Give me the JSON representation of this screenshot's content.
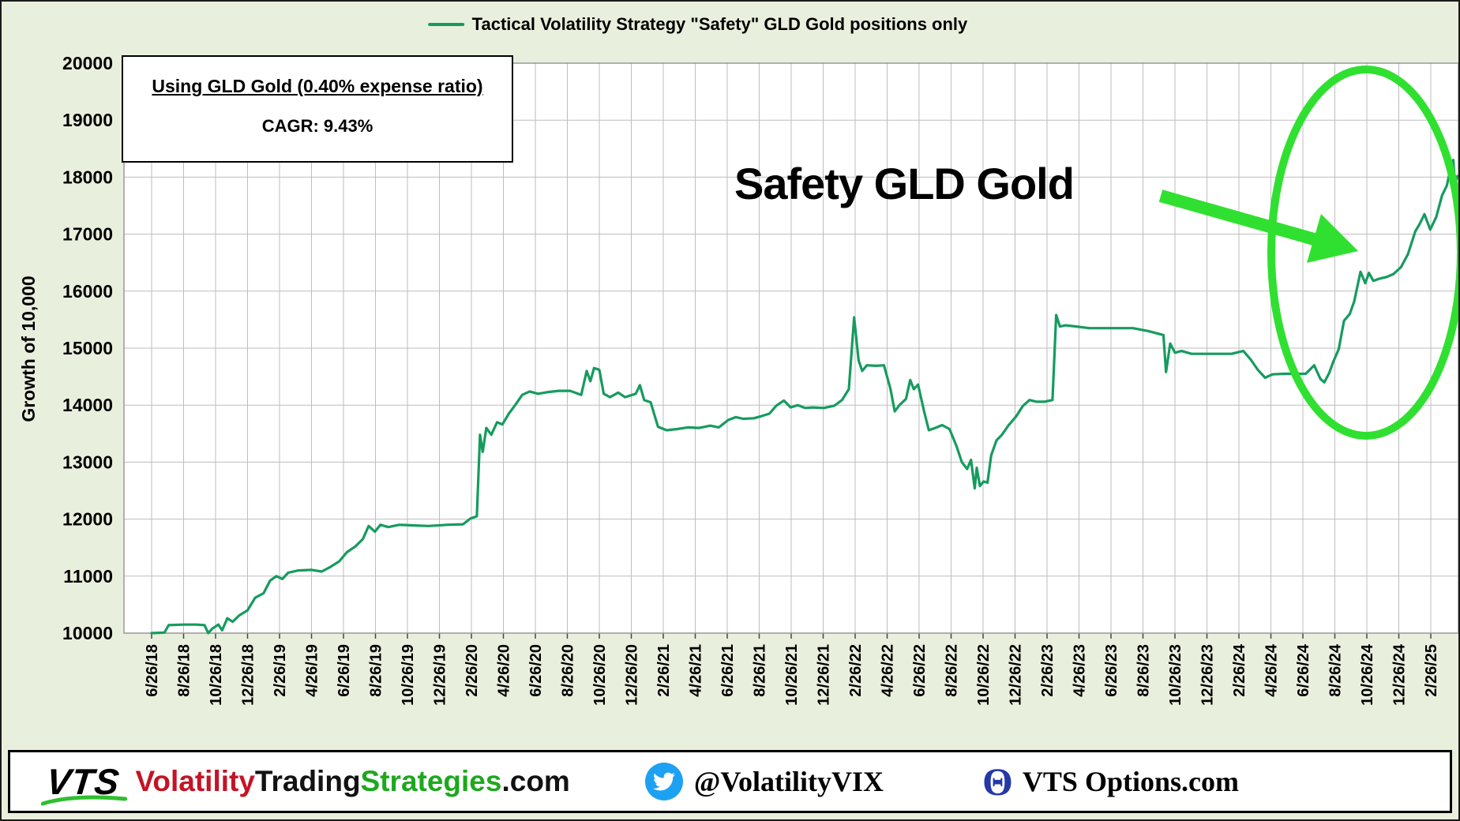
{
  "page": {
    "background_color": "#e9efdd"
  },
  "legend": {
    "label": "Tactical Volatility Strategy \"Safety\" GLD Gold positions only",
    "line_color": "#169b5f"
  },
  "info_box": {
    "title": "Using GLD Gold  (0.40% expense ratio)",
    "cagr_line": "CAGR:  9.43%"
  },
  "annotation": {
    "text": "Safety GLD Gold",
    "highlight_color": "#30e030"
  },
  "chart_data": {
    "type": "line",
    "title": "Tactical Volatility Strategy \"Safety\" GLD Gold positions only",
    "xlabel": "",
    "ylabel": "Growth of 10,000",
    "ylim": [
      10000,
      20000
    ],
    "y_tick_step": 1000,
    "grid": true,
    "legend_position": "top-center",
    "x_tick_labels": [
      "6/26/18",
      "8/26/18",
      "10/26/18",
      "12/26/18",
      "2/26/19",
      "4/26/19",
      "6/26/19",
      "8/26/19",
      "10/26/19",
      "12/26/19",
      "2/26/20",
      "4/26/20",
      "6/26/20",
      "8/26/20",
      "10/26/20",
      "12/26/20",
      "2/26/21",
      "4/26/21",
      "6/26/21",
      "8/26/21",
      "10/26/21",
      "12/26/21",
      "2/26/22",
      "4/26/22",
      "6/26/22",
      "8/26/22",
      "10/26/22",
      "12/26/22",
      "2/26/23",
      "4/26/23",
      "6/26/23",
      "8/26/23",
      "10/26/23",
      "12/26/23",
      "2/26/24",
      "4/26/24",
      "6/26/24",
      "8/26/24",
      "10/26/24",
      "12/26/24",
      "2/26/25"
    ],
    "series": [
      {
        "name": "Tactical Volatility Strategy \"Safety\" GLD Gold positions only",
        "color": "#169b5f",
        "points": [
          [
            "2018-06-26",
            10000
          ],
          [
            "2018-07-20",
            10010
          ],
          [
            "2018-07-28",
            10140
          ],
          [
            "2018-08-26",
            10150
          ],
          [
            "2018-09-20",
            10150
          ],
          [
            "2018-10-05",
            10140
          ],
          [
            "2018-10-12",
            10000
          ],
          [
            "2018-10-20",
            10080
          ],
          [
            "2018-11-01",
            10150
          ],
          [
            "2018-11-08",
            10050
          ],
          [
            "2018-11-18",
            10260
          ],
          [
            "2018-11-28",
            10200
          ],
          [
            "2018-12-10",
            10310
          ],
          [
            "2018-12-26",
            10400
          ],
          [
            "2019-01-10",
            10620
          ],
          [
            "2019-01-26",
            10700
          ],
          [
            "2019-02-08",
            10920
          ],
          [
            "2019-02-20",
            11000
          ],
          [
            "2019-03-01",
            10950
          ],
          [
            "2019-03-12",
            11060
          ],
          [
            "2019-04-01",
            11100
          ],
          [
            "2019-04-26",
            11110
          ],
          [
            "2019-05-15",
            11080
          ],
          [
            "2019-06-01",
            11160
          ],
          [
            "2019-06-18",
            11260
          ],
          [
            "2019-07-02",
            11420
          ],
          [
            "2019-07-18",
            11520
          ],
          [
            "2019-08-02",
            11650
          ],
          [
            "2019-08-13",
            11880
          ],
          [
            "2019-08-25",
            11780
          ],
          [
            "2019-09-05",
            11900
          ],
          [
            "2019-09-20",
            11860
          ],
          [
            "2019-10-10",
            11900
          ],
          [
            "2019-11-05",
            11890
          ],
          [
            "2019-12-05",
            11880
          ],
          [
            "2020-01-10",
            11900
          ],
          [
            "2020-02-10",
            11910
          ],
          [
            "2020-02-24",
            12010
          ],
          [
            "2020-03-06",
            12050
          ],
          [
            "2020-03-12",
            13480
          ],
          [
            "2020-03-17",
            13180
          ],
          [
            "2020-03-24",
            13600
          ],
          [
            "2020-04-03",
            13480
          ],
          [
            "2020-04-14",
            13700
          ],
          [
            "2020-04-24",
            13660
          ],
          [
            "2020-05-06",
            13850
          ],
          [
            "2020-05-18",
            14000
          ],
          [
            "2020-06-01",
            14180
          ],
          [
            "2020-06-15",
            14240
          ],
          [
            "2020-07-01",
            14200
          ],
          [
            "2020-07-20",
            14230
          ],
          [
            "2020-08-10",
            14250
          ],
          [
            "2020-09-01",
            14250
          ],
          [
            "2020-09-22",
            14180
          ],
          [
            "2020-10-02",
            14600
          ],
          [
            "2020-10-09",
            14420
          ],
          [
            "2020-10-16",
            14650
          ],
          [
            "2020-10-26",
            14620
          ],
          [
            "2020-11-04",
            14200
          ],
          [
            "2020-11-16",
            14140
          ],
          [
            "2020-12-01",
            14220
          ],
          [
            "2020-12-14",
            14140
          ],
          [
            "2021-01-04",
            14200
          ],
          [
            "2021-01-12",
            14350
          ],
          [
            "2021-01-20",
            14090
          ],
          [
            "2021-02-02",
            14050
          ],
          [
            "2021-02-16",
            13620
          ],
          [
            "2021-03-02",
            13560
          ],
          [
            "2021-03-22",
            13580
          ],
          [
            "2021-04-12",
            13610
          ],
          [
            "2021-05-03",
            13600
          ],
          [
            "2021-05-24",
            13640
          ],
          [
            "2021-06-10",
            13610
          ],
          [
            "2021-06-28",
            13740
          ],
          [
            "2021-07-12",
            13790
          ],
          [
            "2021-07-26",
            13760
          ],
          [
            "2021-08-16",
            13770
          ],
          [
            "2021-09-01",
            13810
          ],
          [
            "2021-09-15",
            13850
          ],
          [
            "2021-09-28",
            13990
          ],
          [
            "2021-10-12",
            14080
          ],
          [
            "2021-10-25",
            13960
          ],
          [
            "2021-11-08",
            14000
          ],
          [
            "2021-11-22",
            13950
          ],
          [
            "2021-12-06",
            13960
          ],
          [
            "2021-12-27",
            13950
          ],
          [
            "2022-01-17",
            13990
          ],
          [
            "2022-02-01",
            14090
          ],
          [
            "2022-02-14",
            14280
          ],
          [
            "2022-02-24",
            15540
          ],
          [
            "2022-03-02",
            14790
          ],
          [
            "2022-03-09",
            14600
          ],
          [
            "2022-03-18",
            14700
          ],
          [
            "2022-04-05",
            14690
          ],
          [
            "2022-04-20",
            14700
          ],
          [
            "2022-05-02",
            14280
          ],
          [
            "2022-05-10",
            13890
          ],
          [
            "2022-05-19",
            14000
          ],
          [
            "2022-06-01",
            14110
          ],
          [
            "2022-06-09",
            14440
          ],
          [
            "2022-06-16",
            14280
          ],
          [
            "2022-06-24",
            14360
          ],
          [
            "2022-07-05",
            13890
          ],
          [
            "2022-07-14",
            13560
          ],
          [
            "2022-07-26",
            13600
          ],
          [
            "2022-08-09",
            13650
          ],
          [
            "2022-08-23",
            13580
          ],
          [
            "2022-09-06",
            13280
          ],
          [
            "2022-09-16",
            13000
          ],
          [
            "2022-09-26",
            12880
          ],
          [
            "2022-10-03",
            13040
          ],
          [
            "2022-10-10",
            12540
          ],
          [
            "2022-10-14",
            12900
          ],
          [
            "2022-10-20",
            12580
          ],
          [
            "2022-10-27",
            12660
          ],
          [
            "2022-11-04",
            12640
          ],
          [
            "2022-11-11",
            13120
          ],
          [
            "2022-11-21",
            13380
          ],
          [
            "2022-12-01",
            13480
          ],
          [
            "2022-12-13",
            13640
          ],
          [
            "2022-12-28",
            13800
          ],
          [
            "2023-01-10",
            13980
          ],
          [
            "2023-01-23",
            14090
          ],
          [
            "2023-02-06",
            14060
          ],
          [
            "2023-02-21",
            14060
          ],
          [
            "2023-03-06",
            14090
          ],
          [
            "2023-03-13",
            15580
          ],
          [
            "2023-03-20",
            15380
          ],
          [
            "2023-03-31",
            15400
          ],
          [
            "2023-04-21",
            15380
          ],
          [
            "2023-05-15",
            15350
          ],
          [
            "2023-06-12",
            15350
          ],
          [
            "2023-07-10",
            15350
          ],
          [
            "2023-08-07",
            15350
          ],
          [
            "2023-09-05",
            15300
          ],
          [
            "2023-09-26",
            15250
          ],
          [
            "2023-10-04",
            15230
          ],
          [
            "2023-10-09",
            14580
          ],
          [
            "2023-10-17",
            15080
          ],
          [
            "2023-10-26",
            14920
          ],
          [
            "2023-11-08",
            14950
          ],
          [
            "2023-11-27",
            14900
          ],
          [
            "2023-12-18",
            14900
          ],
          [
            "2024-01-15",
            14900
          ],
          [
            "2024-02-12",
            14900
          ],
          [
            "2024-03-04",
            14950
          ],
          [
            "2024-03-18",
            14800
          ],
          [
            "2024-04-01",
            14620
          ],
          [
            "2024-04-15",
            14480
          ],
          [
            "2024-04-29",
            14540
          ],
          [
            "2024-05-20",
            14550
          ],
          [
            "2024-06-10",
            14550
          ],
          [
            "2024-07-01",
            14550
          ],
          [
            "2024-07-17",
            14700
          ],
          [
            "2024-07-29",
            14460
          ],
          [
            "2024-08-06",
            14400
          ],
          [
            "2024-08-15",
            14560
          ],
          [
            "2024-08-23",
            14760
          ],
          [
            "2024-09-03",
            14980
          ],
          [
            "2024-09-13",
            15480
          ],
          [
            "2024-09-24",
            15600
          ],
          [
            "2024-10-02",
            15820
          ],
          [
            "2024-10-14",
            16340
          ],
          [
            "2024-10-23",
            16140
          ],
          [
            "2024-10-30",
            16320
          ],
          [
            "2024-11-08",
            16180
          ],
          [
            "2024-11-20",
            16220
          ],
          [
            "2024-12-03",
            16250
          ],
          [
            "2024-12-16",
            16300
          ],
          [
            "2024-12-30",
            16420
          ],
          [
            "2025-01-13",
            16650
          ],
          [
            "2025-01-27",
            17050
          ],
          [
            "2025-02-05",
            17180
          ],
          [
            "2025-02-14",
            17350
          ],
          [
            "2025-02-25",
            17080
          ],
          [
            "2025-03-06",
            17300
          ],
          [
            "2025-03-17",
            17680
          ],
          [
            "2025-03-26",
            17850
          ],
          [
            "2025-04-02",
            18120
          ],
          [
            "2025-04-08",
            18300
          ],
          [
            "2025-04-11",
            17880
          ],
          [
            "2025-04-16",
            18020
          ]
        ]
      }
    ],
    "annotations": {
      "callout_text": "Safety GLD Gold",
      "highlighted_region": "rally from mid-2024 to early 2025 circled in green with arrow"
    }
  },
  "footer": {
    "logo_text": "VTS",
    "site_name": {
      "part1": "Volatility",
      "part2": "Trading",
      "part3": "Strategies",
      "part4": ".com"
    },
    "site_colors": {
      "part1": "#c41425",
      "part2": "#121212",
      "part3": "#1ea81e",
      "part4": "#121212"
    },
    "twitter_handle": "@VolatilityVIX",
    "twitter_icon_color": "#1da1f2",
    "theta_symbol": "Θ",
    "theta_color": "#2438a6",
    "options_site": "VTS Options.com"
  }
}
